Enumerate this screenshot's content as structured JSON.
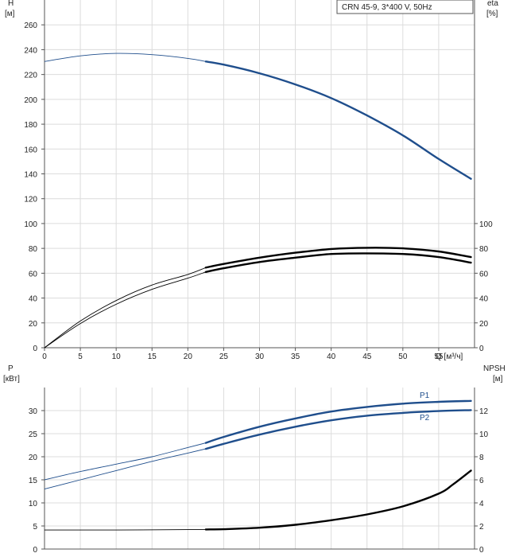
{
  "chart_data": [
    {
      "type": "line",
      "annotation": "CRN 45-9, 3*400 V, 50Hz",
      "xlabel": "Q [м³/ч]",
      "ylabel_left": [
        "H",
        "[м]"
      ],
      "ylabel_right": [
        "eta",
        "[%]"
      ],
      "xlim": [
        0,
        60
      ],
      "ylim_left": [
        0,
        280
      ],
      "ylim_right": [
        0,
        280
      ],
      "x_ticks": [
        0,
        5,
        10,
        15,
        20,
        25,
        30,
        35,
        40,
        45,
        50,
        55
      ],
      "y_left_ticks": [
        0,
        20,
        40,
        60,
        80,
        100,
        120,
        140,
        160,
        180,
        200,
        220,
        240,
        260
      ],
      "y_right_ticks": [
        0,
        20,
        40,
        60,
        80,
        100
      ],
      "grid": true,
      "series": [
        {
          "key": "H",
          "axis": "left",
          "color": "#1f4e8c",
          "bold_from": 22.5,
          "points": [
            [
              0,
              230.5
            ],
            [
              5,
              235
            ],
            [
              10,
              237
            ],
            [
              15,
              236
            ],
            [
              20,
              233
            ],
            [
              22.5,
              230.5
            ],
            [
              25,
              228
            ],
            [
              30,
              221
            ],
            [
              35,
              212
            ],
            [
              40,
              201
            ],
            [
              45,
              187
            ],
            [
              50,
              171
            ],
            [
              55,
              152
            ],
            [
              59.5,
              136
            ]
          ]
        },
        {
          "key": "eta-upper",
          "axis": "right",
          "color": "#000000",
          "bold_from": 22.5,
          "points": [
            [
              0,
              0
            ],
            [
              5,
              21.5
            ],
            [
              10,
              38
            ],
            [
              15,
              50.5
            ],
            [
              20,
              59
            ],
            [
              22.5,
              64.5
            ],
            [
              25,
              67.5
            ],
            [
              30,
              72.5
            ],
            [
              35,
              76.5
            ],
            [
              40,
              79.5
            ],
            [
              45,
              80.5
            ],
            [
              50,
              80
            ],
            [
              55,
              77.5
            ],
            [
              59.5,
              73
            ]
          ]
        },
        {
          "key": "eta-lower",
          "axis": "right",
          "color": "#000000",
          "bold_from": 22.5,
          "points": [
            [
              0,
              0
            ],
            [
              5,
              19.5
            ],
            [
              10,
              35
            ],
            [
              15,
              47
            ],
            [
              20,
              56
            ],
            [
              22.5,
              61
            ],
            [
              25,
              64
            ],
            [
              30,
              69
            ],
            [
              35,
              72.5
            ],
            [
              40,
              75.5
            ],
            [
              45,
              76
            ],
            [
              50,
              75.5
            ],
            [
              55,
              73
            ],
            [
              59.5,
              68.5
            ]
          ]
        }
      ]
    },
    {
      "type": "line",
      "ylabel_left": [
        "P",
        "[кВт]"
      ],
      "ylabel_right": [
        "NPSH",
        "[м]"
      ],
      "xlim": [
        0,
        60
      ],
      "ylim_left": [
        0,
        35
      ],
      "ylim_right": [
        0,
        14
      ],
      "y_left_ticks": [
        0,
        5,
        10,
        15,
        20,
        25,
        30
      ],
      "y_right_ticks": [
        0,
        2,
        4,
        6,
        8,
        10,
        12
      ],
      "grid": true,
      "series": [
        {
          "key": "P1",
          "name": "P1",
          "axis": "left",
          "color": "#1f4e8c",
          "bold_from": 22.5,
          "points": [
            [
              0,
              15
            ],
            [
              5,
              16.8
            ],
            [
              10,
              18.4
            ],
            [
              15,
              20
            ],
            [
              20,
              22
            ],
            [
              22.5,
              23
            ],
            [
              25,
              24.3
            ],
            [
              30,
              26.5
            ],
            [
              35,
              28.3
            ],
            [
              40,
              29.8
            ],
            [
              45,
              30.8
            ],
            [
              50,
              31.5
            ],
            [
              55,
              31.9
            ],
            [
              59.5,
              32.1
            ]
          ]
        },
        {
          "key": "P2",
          "name": "P2",
          "axis": "left",
          "color": "#1f4e8c",
          "bold_from": 22.5,
          "points": [
            [
              0,
              13
            ],
            [
              5,
              15
            ],
            [
              10,
              17
            ],
            [
              15,
              19
            ],
            [
              20,
              20.8
            ],
            [
              22.5,
              21.7
            ],
            [
              25,
              22.8
            ],
            [
              30,
              24.8
            ],
            [
              35,
              26.5
            ],
            [
              40,
              27.9
            ],
            [
              45,
              28.9
            ],
            [
              50,
              29.5
            ],
            [
              55,
              29.9
            ],
            [
              59.5,
              30.1
            ]
          ]
        },
        {
          "key": "NPSH",
          "axis": "right",
          "color": "#000000",
          "bold_from": 22.5,
          "points": [
            [
              0,
              1.65
            ],
            [
              10,
              1.65
            ],
            [
              20,
              1.68
            ],
            [
              22.5,
              1.7
            ],
            [
              25,
              1.72
            ],
            [
              30,
              1.85
            ],
            [
              35,
              2.1
            ],
            [
              40,
              2.5
            ],
            [
              45,
              3.0
            ],
            [
              50,
              3.7
            ],
            [
              55,
              4.8
            ],
            [
              57,
              5.6
            ],
            [
              59.5,
              6.8
            ]
          ]
        }
      ]
    }
  ]
}
